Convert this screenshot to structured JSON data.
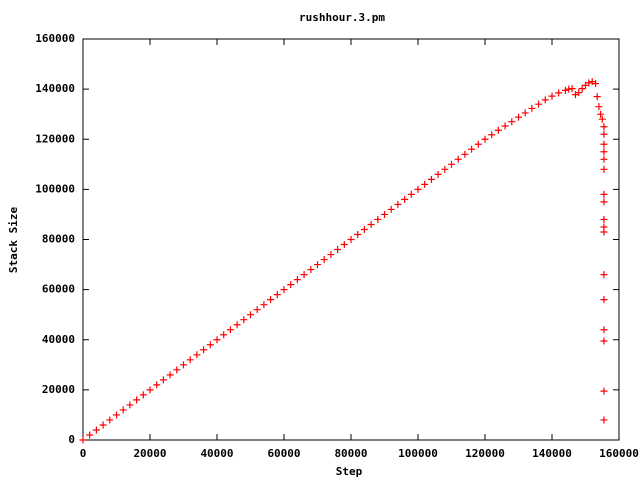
{
  "chart_data": {
    "type": "scatter",
    "title": "rushhour.3.pm",
    "x_label": "Step",
    "y_label": "Stack Size",
    "color": "#ff0000",
    "xlim": [
      0,
      160000
    ],
    "xticks": [
      0,
      20000,
      40000,
      60000,
      80000,
      100000,
      120000,
      140000,
      160000
    ],
    "ylim": [
      0,
      160000
    ],
    "yticks": [
      0,
      20000,
      40000,
      60000,
      80000,
      100000,
      120000,
      140000,
      160000
    ],
    "x": [
      0,
      2000,
      4000,
      6000,
      8000,
      10000,
      12000,
      14000,
      16000,
      18000,
      20000,
      22000,
      24000,
      26000,
      28000,
      30000,
      32000,
      34000,
      36000,
      38000,
      40000,
      42000,
      44000,
      46000,
      48000,
      50000,
      52000,
      54000,
      56000,
      58000,
      60000,
      62000,
      64000,
      66000,
      68000,
      70000,
      72000,
      74000,
      76000,
      78000,
      80000,
      82000,
      84000,
      86000,
      88000,
      90000,
      92000,
      94000,
      96000,
      98000,
      100000,
      102000,
      104000,
      106000,
      108000,
      110000,
      112000,
      114000,
      116000,
      118000,
      120000,
      122000,
      124000,
      126000,
      128000,
      130000,
      132000,
      134000,
      136000,
      138000,
      140000,
      142000,
      144000,
      145000,
      146000,
      147000,
      148000,
      149000,
      150000,
      151000,
      152000,
      153000,
      153500,
      154000,
      154500,
      155000,
      155500,
      155500,
      155500,
      155500,
      155500,
      155500,
      155500,
      155500,
      155500,
      155500,
      155500,
      155500,
      155500,
      155500,
      155500,
      155500,
      155500
    ],
    "y": [
      0,
      2000,
      4000,
      6000,
      8000,
      10000,
      12000,
      14000,
      16000,
      18000,
      20000,
      22000,
      24000,
      26000,
      28000,
      30000,
      32000,
      34000,
      36000,
      38000,
      40000,
      42000,
      44000,
      46000,
      48000,
      50000,
      52000,
      54000,
      56000,
      58000,
      60000,
      62000,
      64000,
      66000,
      68000,
      70000,
      72000,
      74000,
      76000,
      78000,
      80000,
      82000,
      84000,
      86000,
      88000,
      90000,
      92000,
      94000,
      96000,
      98000,
      100000,
      102000,
      104000,
      106000,
      108000,
      110000,
      112000,
      114000,
      116000,
      118000,
      120000,
      121800,
      123600,
      125300,
      127000,
      128800,
      130500,
      132300,
      134000,
      135700,
      137200,
      138500,
      139500,
      140000,
      140200,
      137800,
      138600,
      140200,
      141500,
      142500,
      143000,
      142200,
      137000,
      133000,
      130000,
      128000,
      125000,
      122000,
      118000,
      115000,
      112000,
      108000,
      98000,
      95000,
      88000,
      85000,
      83000,
      66000,
      56000,
      44000,
      39500,
      19500,
      8000
    ]
  }
}
